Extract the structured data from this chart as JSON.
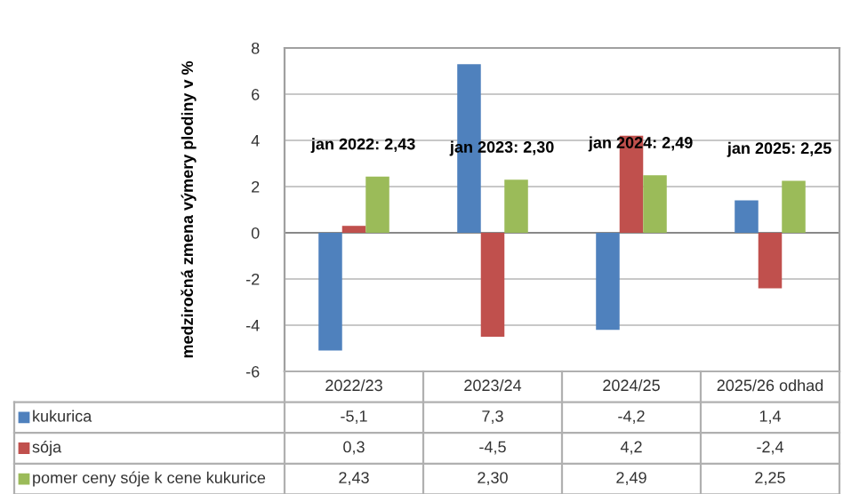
{
  "chart_data": {
    "type": "bar",
    "ylabel": "medziročná zmena výmery plodiny v %",
    "categories": [
      "2022/23",
      "2023/24",
      "2024/25",
      "2025/26 odhad"
    ],
    "series": [
      {
        "name": "kukurica",
        "color": "#4f81bd",
        "values": [
          -5.1,
          7.3,
          -4.2,
          1.4
        ],
        "value_labels": [
          "-5,1",
          "7,3",
          "-4,2",
          "1,4"
        ]
      },
      {
        "name": "sója",
        "color": "#c0504d",
        "values": [
          0.3,
          -4.5,
          4.2,
          -2.4
        ],
        "value_labels": [
          "0,3",
          "-4,5",
          "4,2",
          "-2,4"
        ]
      },
      {
        "name": "pomer ceny sóje k cene kukurice",
        "color": "#9bbb59",
        "values": [
          2.43,
          2.3,
          2.49,
          2.25
        ],
        "value_labels": [
          "2,43",
          "2,30",
          "2,49",
          "2,25"
        ]
      }
    ],
    "annotations": [
      "jan 2022: 2,43",
      "jan 2023: 2,30",
      "jan 2024: 2,49",
      "jan 2025: 2,25"
    ],
    "ylim": [
      -6,
      8
    ],
    "yticks": [
      -6,
      -4,
      -2,
      0,
      2,
      4,
      6,
      8
    ],
    "grid": "y",
    "legend": "bottom"
  }
}
